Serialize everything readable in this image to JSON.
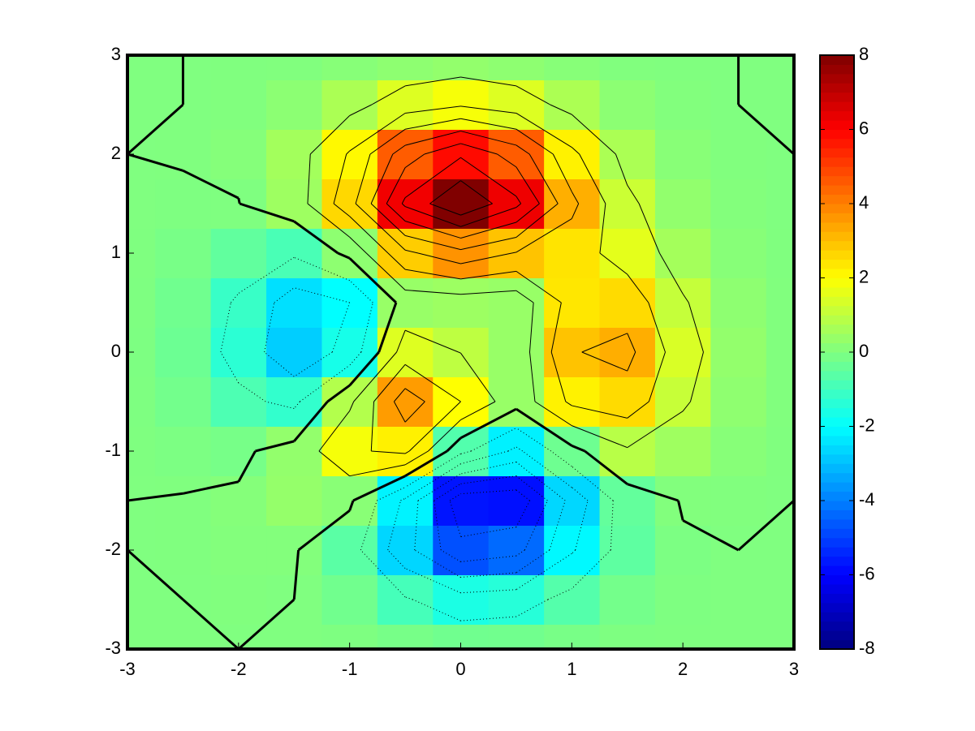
{
  "chart_data": {
    "type": "heatmap",
    "colormap": "jet",
    "x": [
      -3,
      -2.5,
      -2,
      -1.5,
      -1,
      -0.5,
      0,
      0.5,
      1,
      1.5,
      2,
      2.5,
      3
    ],
    "y": [
      -3,
      -2.5,
      -2,
      -1.5,
      -1,
      -0.5,
      0,
      0.5,
      1,
      1.5,
      2,
      2.5,
      3
    ],
    "z": [
      [
        0,
        0,
        0,
        0,
        -0.03,
        -0.14,
        -0.24,
        -0.22,
        -0.11,
        -0.03,
        -0.01,
        0,
        0
      ],
      [
        0,
        0,
        0.02,
        0,
        -0.23,
        -0.91,
        -1.57,
        -1.41,
        -0.69,
        -0.18,
        -0.03,
        0,
        0
      ],
      [
        0,
        0.01,
        0.05,
        0.05,
        -0.59,
        -2.64,
        -4.75,
        -4.34,
        -2.1,
        -0.53,
        -0.06,
        0,
        0
      ],
      [
        0,
        0.01,
        0.08,
        0.33,
        0.15,
        -2.19,
        -5.68,
        -5.76,
        -2.63,
        -0.44,
        0.04,
        0.03,
        0
      ],
      [
        -0.01,
        -0.06,
        -0.13,
        0.3,
        1.86,
        2.22,
        -0.72,
        -2.22,
        -0.27,
        0.88,
        0.5,
        0.11,
        0.01
      ],
      [
        -0.03,
        -0.2,
        -0.8,
        -1.21,
        0.8,
        3.55,
        2,
        0.39,
        2.2,
        2.56,
        1.12,
        0.24,
        0.03
      ],
      [
        -0.04,
        -0.3,
        -1.33,
        -2.77,
        -1.65,
        1.48,
        0.98,
        0.38,
        2.94,
        3.27,
        1.41,
        0.3,
        0.03
      ],
      [
        -0.03,
        -0.25,
        -1.12,
        -2.49,
        -2,
        0.39,
        0.46,
        0.38,
        2.38,
        2.56,
        1.09,
        0.23,
        0.03
      ],
      [
        -0.01,
        -0.11,
        -0.48,
        -0.86,
        0.23,
        2.79,
        3.69,
        2.94,
        2.43,
        1.58,
        0.58,
        0.11,
        0.01
      ],
      [
        0,
        -0.02,
        -0.01,
        0.48,
        2.61,
        6.2,
        8,
        6.25,
        3.25,
        1.19,
        0.29,
        0.05,
        0
      ],
      [
        0,
        0.01,
        0.08,
        0.55,
        2.09,
        4.55,
        5.85,
        4.56,
        2.21,
        0.68,
        0.13,
        0.02,
        0
      ],
      [
        0,
        0,
        0.03,
        0.19,
        0.69,
        1.47,
        1.88,
        1.47,
        0.7,
        0.2,
        0.04,
        0,
        0
      ],
      [
        0,
        0,
        0.01,
        0.03,
        0.11,
        0.23,
        0.3,
        0.23,
        0.11,
        0.03,
        0.01,
        0,
        0
      ]
    ],
    "xlim": [
      -3,
      3
    ],
    "ylim": [
      -3,
      3
    ],
    "xticks": [
      -3,
      -2,
      -1,
      0,
      1,
      2,
      3
    ],
    "yticks": [
      -3,
      -2,
      -1,
      0,
      1,
      2,
      3
    ],
    "clim": [
      -8,
      8
    ],
    "colorbar_ticks": [
      -8,
      -6,
      -4,
      -2,
      0,
      2,
      4,
      6,
      8
    ],
    "contour_levels": [
      -6,
      -5,
      -4,
      -3,
      -2,
      -1,
      0,
      1,
      2,
      3,
      4,
      5,
      6,
      7
    ]
  }
}
